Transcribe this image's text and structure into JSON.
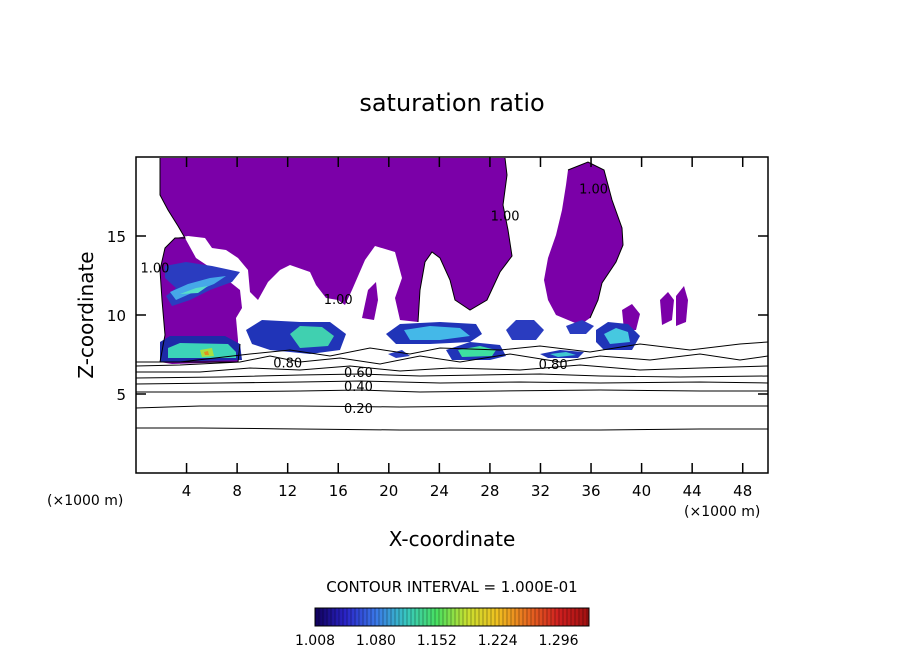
{
  "chart_data": {
    "type": "contour",
    "title": "saturation ratio",
    "xlabel": "X-coordinate",
    "ylabel": "Z-coordinate",
    "x_unit_left": "(×1000 m)",
    "x_unit_right": "(×1000 m)",
    "xlim": [
      0,
      50
    ],
    "ylim": [
      0,
      20
    ],
    "xticks": [
      4,
      8,
      12,
      16,
      20,
      24,
      28,
      32,
      36,
      40,
      44,
      48
    ],
    "yticks": [
      5,
      10,
      15
    ],
    "contour_interval_text": "CONTOUR INTERVAL = 1.000E-01",
    "contour_labels": [
      {
        "text": "0.20",
        "x": 17.6,
        "y": 4.1
      },
      {
        "text": "0.40",
        "x": 17.6,
        "y": 5.5
      },
      {
        "text": "0.60",
        "x": 17.6,
        "y": 6.4
      },
      {
        "text": "0.80",
        "x": 12.0,
        "y": 7.0
      },
      {
        "text": "0.80",
        "x": 33.0,
        "y": 6.9
      },
      {
        "text": "1.00",
        "x": 1.5,
        "y": 13.0
      },
      {
        "text": "1.00",
        "x": 16.0,
        "y": 11.0
      },
      {
        "text": "1.00",
        "x": 29.2,
        "y": 16.3
      },
      {
        "text": "1.00",
        "x": 36.2,
        "y": 18.0
      }
    ],
    "colorbar": {
      "ticks": [
        "1.008",
        "1.080",
        "1.152",
        "1.224",
        "1.296"
      ],
      "min": 1.008,
      "max": 1.332,
      "colors": [
        "#10005a",
        "#2a24c8",
        "#3a78e8",
        "#38c8c0",
        "#48e060",
        "#c8e030",
        "#f0c020",
        "#e86a20",
        "#d02020",
        "#a01010"
      ]
    },
    "fill_color_base": "#7b00a8"
  }
}
